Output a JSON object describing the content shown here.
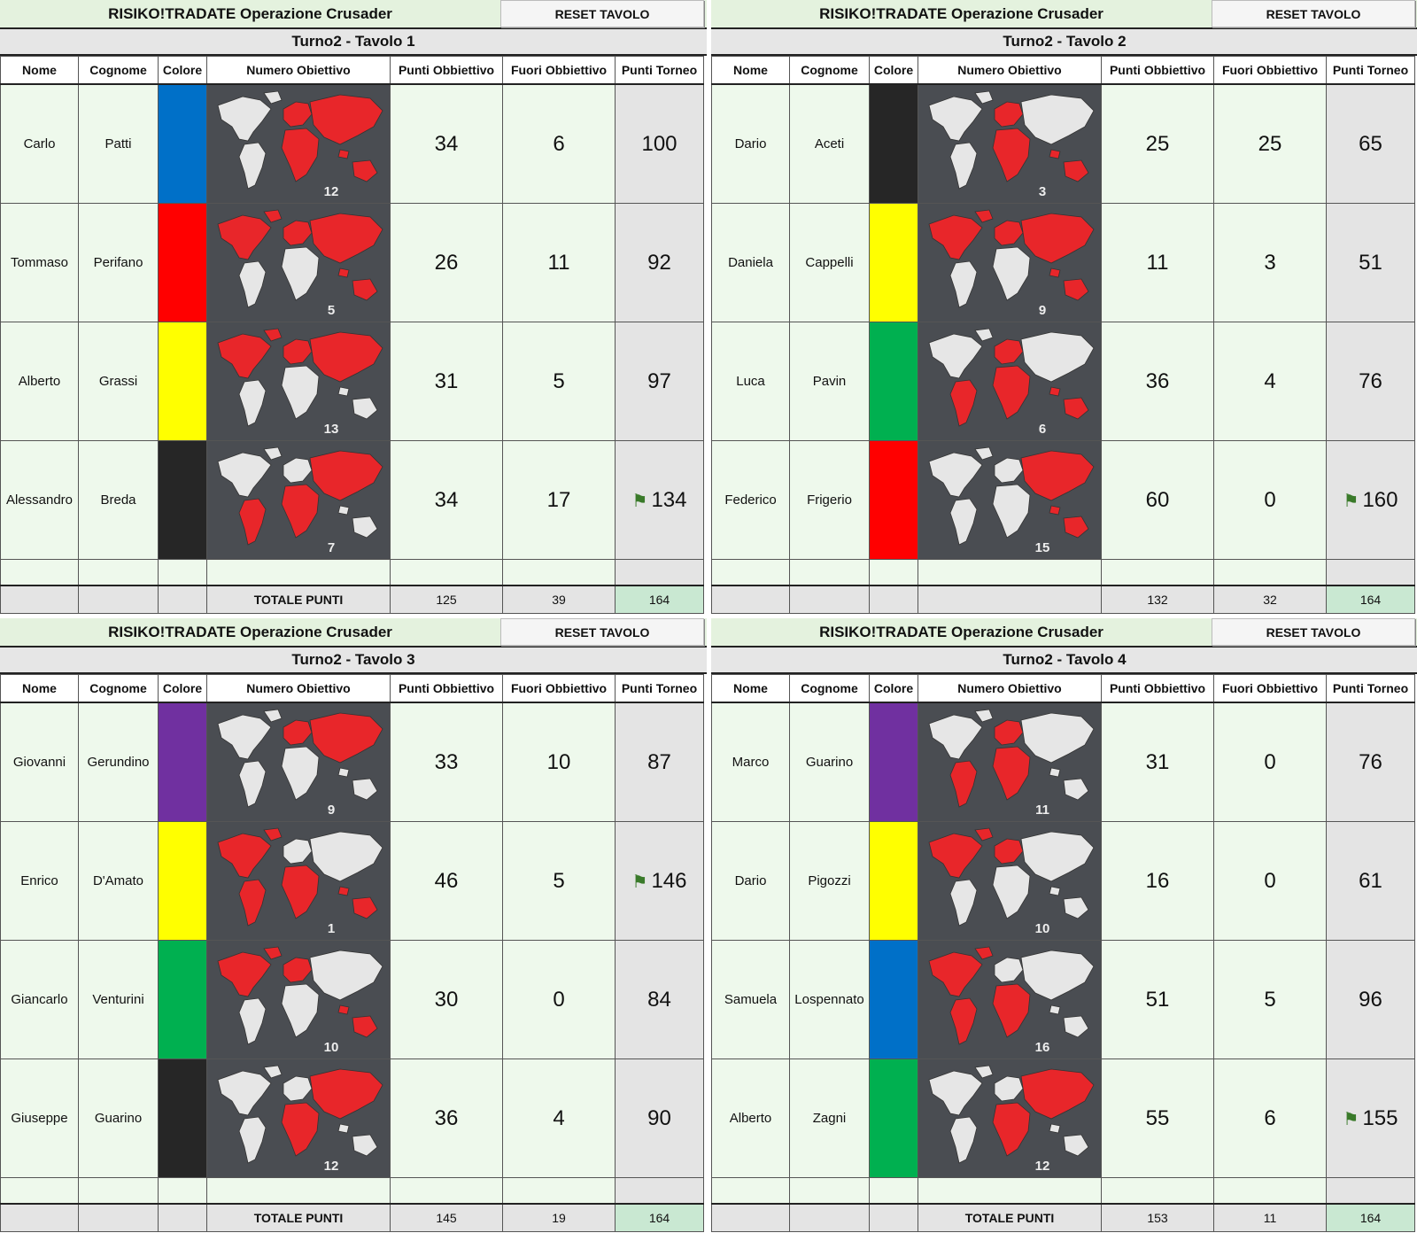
{
  "colors": {
    "blue": "#0070c8",
    "red": "#ff0000",
    "yellow": "#ffff00",
    "black": "#262626",
    "green": "#00b050",
    "purple": "#7030a0",
    "map_background": "#4a4d52",
    "map_land": "#e6e6e6",
    "map_owned": "#e8262a"
  },
  "flag_icon": "green-flag-icon",
  "tables": [
    {
      "title": "RISIKO!TRADATE Operazione Crusader",
      "reset_label": "RESET TAVOLO",
      "subtitle": "Turno2 - Tavolo 1",
      "headers": [
        "Nome",
        "Cognome",
        "Colore",
        "Numero Obiettivo",
        "Punti Obbiettivo",
        "Fuori Obbiettivo",
        "Punti Torneo"
      ],
      "players": [
        {
          "nome": "Carlo",
          "cognome": "Patti",
          "colore": "blue",
          "obiettivo": "12",
          "punti_obiettivo": "34",
          "fuori_obiettivo": "6",
          "punti_torneo": "100",
          "flag": false
        },
        {
          "nome": "Tommaso",
          "cognome": "Perifano",
          "colore": "red",
          "obiettivo": "5",
          "punti_obiettivo": "26",
          "fuori_obiettivo": "11",
          "punti_torneo": "92",
          "flag": false
        },
        {
          "nome": "Alberto",
          "cognome": "Grassi",
          "colore": "yellow",
          "obiettivo": "13",
          "punti_obiettivo": "31",
          "fuori_obiettivo": "5",
          "punti_torneo": "97",
          "flag": false
        },
        {
          "nome": "Alessandro",
          "cognome": "Breda",
          "colore": "black",
          "obiettivo": "7",
          "punti_obiettivo": "34",
          "fuori_obiettivo": "17",
          "punti_torneo": "134",
          "flag": true
        }
      ],
      "totals": {
        "label": "TOTALE PUNTI",
        "punti_obiettivo": "125",
        "fuori_obiettivo": "39",
        "punti_torneo": "164"
      }
    },
    {
      "title": "RISIKO!TRADATE Operazione Crusader",
      "reset_label": "RESET TAVOLO",
      "subtitle": "Turno2 - Tavolo 2",
      "headers": [
        "Nome",
        "Cognome",
        "Colore",
        "Numero Obiettivo",
        "Punti Obbiettivo",
        "Fuori Obbiettivo",
        "Punti Torneo"
      ],
      "players": [
        {
          "nome": "Dario",
          "cognome": "Aceti",
          "colore": "black",
          "obiettivo": "3",
          "punti_obiettivo": "25",
          "fuori_obiettivo": "25",
          "punti_torneo": "65",
          "flag": false
        },
        {
          "nome": "Daniela",
          "cognome": "Cappelli",
          "colore": "yellow",
          "obiettivo": "9",
          "punti_obiettivo": "11",
          "fuori_obiettivo": "3",
          "punti_torneo": "51",
          "flag": false
        },
        {
          "nome": "Luca",
          "cognome": "Pavin",
          "colore": "green",
          "obiettivo": "6",
          "punti_obiettivo": "36",
          "fuori_obiettivo": "4",
          "punti_torneo": "76",
          "flag": false
        },
        {
          "nome": "Federico",
          "cognome": "Frigerio",
          "colore": "red",
          "obiettivo": "15",
          "punti_obiettivo": "60",
          "fuori_obiettivo": "0",
          "punti_torneo": "160",
          "flag": true
        }
      ],
      "totals": {
        "label": "",
        "punti_obiettivo": "132",
        "fuori_obiettivo": "32",
        "punti_torneo": "164"
      }
    },
    {
      "title": "RISIKO!TRADATE Operazione Crusader",
      "reset_label": "RESET TAVOLO",
      "subtitle": "Turno2 - Tavolo 3",
      "headers": [
        "Nome",
        "Cognome",
        "Colore",
        "Numero Obiettivo",
        "Punti Obbiettivo",
        "Fuori Obbiettivo",
        "Punti Torneo"
      ],
      "players": [
        {
          "nome": "Giovanni",
          "cognome": "Gerundino",
          "colore": "purple",
          "obiettivo": "9",
          "punti_obiettivo": "33",
          "fuori_obiettivo": "10",
          "punti_torneo": "87",
          "flag": false
        },
        {
          "nome": "Enrico",
          "cognome": "D'Amato",
          "colore": "yellow",
          "obiettivo": "1",
          "punti_obiettivo": "46",
          "fuori_obiettivo": "5",
          "punti_torneo": "146",
          "flag": true
        },
        {
          "nome": "Giancarlo",
          "cognome": "Venturini",
          "colore": "green",
          "obiettivo": "10",
          "punti_obiettivo": "30",
          "fuori_obiettivo": "0",
          "punti_torneo": "84",
          "flag": false
        },
        {
          "nome": "Giuseppe",
          "cognome": "Guarino",
          "colore": "black",
          "obiettivo": "12",
          "punti_obiettivo": "36",
          "fuori_obiettivo": "4",
          "punti_torneo": "90",
          "flag": false
        }
      ],
      "totals": {
        "label": "TOTALE PUNTI",
        "punti_obiettivo": "145",
        "fuori_obiettivo": "19",
        "punti_torneo": "164"
      }
    },
    {
      "title": "RISIKO!TRADATE Operazione Crusader",
      "reset_label": "RESET TAVOLO",
      "subtitle": "Turno2 - Tavolo 4",
      "headers": [
        "Nome",
        "Cognome",
        "Colore",
        "Numero Obiettivo",
        "Punti Obbiettivo",
        "Fuori Obbiettivo",
        "Punti Torneo"
      ],
      "players": [
        {
          "nome": "Marco",
          "cognome": "Guarino",
          "colore": "purple",
          "obiettivo": "11",
          "punti_obiettivo": "31",
          "fuori_obiettivo": "0",
          "punti_torneo": "76",
          "flag": false
        },
        {
          "nome": "Dario",
          "cognome": "Pigozzi",
          "colore": "yellow",
          "obiettivo": "10",
          "punti_obiettivo": "16",
          "fuori_obiettivo": "0",
          "punti_torneo": "61",
          "flag": false
        },
        {
          "nome": "Samuela",
          "cognome": "Lospennato",
          "colore": "blue",
          "obiettivo": "16",
          "punti_obiettivo": "51",
          "fuori_obiettivo": "5",
          "punti_torneo": "96",
          "flag": false
        },
        {
          "nome": "Alberto",
          "cognome": "Zagni",
          "colore": "green",
          "obiettivo": "12",
          "punti_obiettivo": "55",
          "fuori_obiettivo": "6",
          "punti_torneo": "155",
          "flag": true
        }
      ],
      "totals": {
        "label": "TOTALE PUNTI",
        "punti_obiettivo": "153",
        "fuori_obiettivo": "11",
        "punti_torneo": "164"
      }
    }
  ]
}
